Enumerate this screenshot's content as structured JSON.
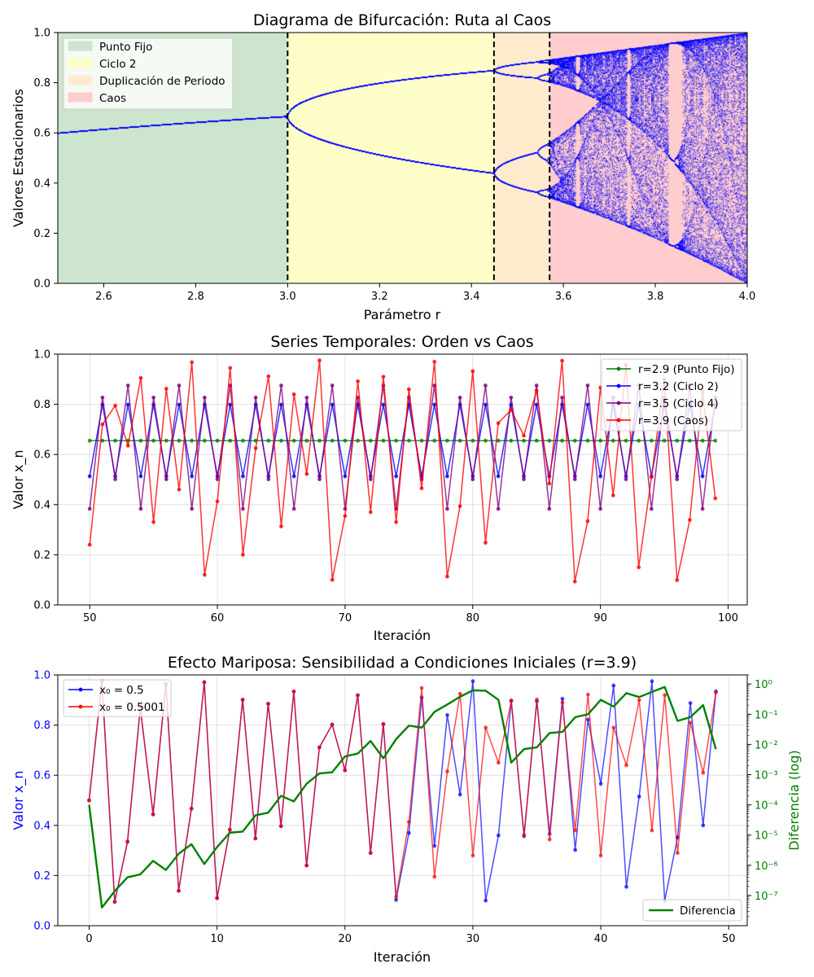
{
  "chart_data": [
    {
      "type": "scatter",
      "title": "Diagrama de Bifurcación: Ruta al Caos",
      "xlabel": "Parámetro r",
      "ylabel": "Valores Estacionarios",
      "xlim": [
        2.5,
        4.0
      ],
      "ylim": [
        0.0,
        1.0
      ],
      "xticks": [
        "2.6",
        "2.8",
        "3.0",
        "3.2",
        "3.4",
        "3.6",
        "3.8",
        "4.0"
      ],
      "yticks": [
        "0.0",
        "0.2",
        "0.4",
        "0.6",
        "0.8",
        "1.0"
      ],
      "grid": false,
      "point_color": "#0000ff",
      "regions": [
        {
          "name": "Punto Fijo",
          "r_start": 2.5,
          "r_end": 3.0,
          "color": "#cde5cd"
        },
        {
          "name": "Ciclo 2",
          "r_start": 3.0,
          "r_end": 3.449,
          "color": "#fefec8"
        },
        {
          "name": "Duplicación de Periodo",
          "r_start": 3.449,
          "r_end": 3.57,
          "color": "#feebcd"
        },
        {
          "name": "Caos",
          "r_start": 3.57,
          "r_end": 4.0,
          "color": "#ffcdcd"
        }
      ],
      "thresholds": [
        3.0,
        3.449,
        3.57
      ],
      "legend_position": "upper-left"
    },
    {
      "type": "line",
      "title": "Series Temporales: Orden vs Caos",
      "xlabel": "Iteración",
      "ylabel": "Valor x_n",
      "xlim": [
        47.5,
        101.5
      ],
      "ylim": [
        0.0,
        1.0
      ],
      "xticks": [
        "50",
        "60",
        "70",
        "80",
        "90",
        "100"
      ],
      "yticks": [
        "0.0",
        "0.2",
        "0.4",
        "0.6",
        "0.8",
        "1.0"
      ],
      "grid": true,
      "x_start": 50,
      "x_end": 99,
      "legend_position": "upper-right",
      "series": [
        {
          "name": "r=2.9 (Punto Fijo)",
          "r": 2.9,
          "color": "#008000",
          "values": [
            0.655,
            0.655,
            0.655,
            0.655,
            0.655,
            0.655,
            0.655,
            0.655,
            0.655,
            0.655,
            0.655,
            0.655,
            0.655,
            0.655,
            0.655,
            0.655,
            0.655,
            0.655,
            0.655,
            0.655,
            0.655,
            0.655,
            0.655,
            0.655,
            0.655,
            0.655,
            0.655,
            0.655,
            0.655,
            0.655,
            0.655,
            0.655,
            0.655,
            0.655,
            0.655,
            0.655,
            0.655,
            0.655,
            0.655,
            0.655,
            0.655,
            0.655,
            0.655,
            0.655,
            0.655,
            0.655,
            0.655,
            0.655,
            0.655,
            0.655
          ]
        },
        {
          "name": "r=3.2 (Ciclo 2)",
          "r": 3.2,
          "color": "#0000ff",
          "values": [
            0.513,
            0.799,
            0.513,
            0.799,
            0.513,
            0.799,
            0.513,
            0.799,
            0.513,
            0.799,
            0.513,
            0.799,
            0.513,
            0.799,
            0.513,
            0.799,
            0.513,
            0.799,
            0.513,
            0.799,
            0.513,
            0.799,
            0.513,
            0.799,
            0.513,
            0.799,
            0.513,
            0.799,
            0.513,
            0.799,
            0.513,
            0.799,
            0.513,
            0.799,
            0.513,
            0.799,
            0.513,
            0.799,
            0.513,
            0.799,
            0.513,
            0.799,
            0.513,
            0.799,
            0.513,
            0.799,
            0.513,
            0.799,
            0.513,
            0.799
          ]
        },
        {
          "name": "r=3.5 (Ciclo 4)",
          "r": 3.5,
          "color": "#800080",
          "values": [
            0.383,
            0.827,
            0.501,
            0.875,
            0.383,
            0.827,
            0.501,
            0.875,
            0.383,
            0.827,
            0.501,
            0.875,
            0.383,
            0.827,
            0.501,
            0.875,
            0.383,
            0.827,
            0.501,
            0.875,
            0.383,
            0.827,
            0.501,
            0.875,
            0.383,
            0.827,
            0.501,
            0.875,
            0.383,
            0.827,
            0.501,
            0.875,
            0.383,
            0.827,
            0.501,
            0.875,
            0.383,
            0.827,
            0.501,
            0.875,
            0.383,
            0.827,
            0.501,
            0.875,
            0.383,
            0.827,
            0.501,
            0.875,
            0.383,
            0.827
          ]
        },
        {
          "name": "r=3.9 (Caos)",
          "r": 3.9,
          "color": "#ff0000",
          "values": [
            0.24,
            0.72,
            0.795,
            0.635,
            0.905,
            0.33,
            0.862,
            0.46,
            0.968,
            0.12,
            0.413,
            0.945,
            0.2,
            0.625,
            0.912,
            0.313,
            0.84,
            0.522,
            0.975,
            0.1,
            0.355,
            0.892,
            0.37,
            0.91,
            0.33,
            0.86,
            0.465,
            0.97,
            0.113,
            0.394,
            0.932,
            0.248,
            0.725,
            0.778,
            0.675,
            0.855,
            0.484,
            0.974,
            0.093,
            0.334,
            0.867,
            0.437,
            0.958,
            0.15,
            0.51,
            0.9,
            0.099,
            0.339,
            0.85,
            0.425
          ]
        }
      ]
    },
    {
      "type": "line",
      "title": "Efecto Mariposa: Sensibilidad a Condiciones Iniciales (r=3.9)",
      "xlabel": "Iteración",
      "ylabel": "Valor x_n",
      "y2label": "Diferencia (log)",
      "xlim": [
        -2.45,
        51.45
      ],
      "ylim": [
        0.0,
        1.0
      ],
      "y2scale": "log",
      "y2lim": [
        1e-08,
        2
      ],
      "xticks": [
        "0",
        "10",
        "20",
        "30",
        "40",
        "50"
      ],
      "yticks": [
        "0.0",
        "0.2",
        "0.4",
        "0.6",
        "0.8",
        "1.0"
      ],
      "y2ticks": [
        "10⁻⁷",
        "10⁻⁶",
        "10⁻⁵",
        "10⁻⁴",
        "10⁻³",
        "10⁻²",
        "10⁻¹",
        "10⁰"
      ],
      "grid": true,
      "legend_position": "upper-left",
      "legend2_position": "lower-right",
      "series": [
        {
          "name": "x₀ = 0.5",
          "color": "#0000ff",
          "values": [
            0.5,
            0.975,
            0.095,
            0.335,
            0.869,
            0.444,
            0.963,
            0.139,
            0.467,
            0.971,
            0.11,
            0.383,
            0.901,
            0.348,
            0.885,
            0.397,
            0.934,
            0.24,
            0.711,
            0.802,
            0.62,
            0.919,
            0.29,
            0.804,
            0.103,
            0.37,
            0.91,
            0.318,
            0.84,
            0.523,
            0.975,
            0.1,
            0.36,
            0.898,
            0.357,
            0.895,
            0.366,
            0.905,
            0.302,
            0.822,
            0.566,
            0.958,
            0.155,
            0.515,
            0.975,
            0.1,
            0.352,
            0.888,
            0.4,
            0.935
          ]
        },
        {
          "name": "x₀ = 0.5001",
          "color": "#ff0000",
          "values": [
            0.5,
            0.975,
            0.095,
            0.335,
            0.869,
            0.444,
            0.963,
            0.139,
            0.467,
            0.971,
            0.11,
            0.383,
            0.901,
            0.348,
            0.885,
            0.397,
            0.934,
            0.24,
            0.711,
            0.802,
            0.62,
            0.919,
            0.29,
            0.804,
            0.116,
            0.414,
            0.948,
            0.195,
            0.615,
            0.925,
            0.28,
            0.79,
            0.65,
            0.896,
            0.362,
            0.902,
            0.344,
            0.89,
            0.38,
            0.922,
            0.28,
            0.79,
            0.64,
            0.9,
            0.38,
            0.92,
            0.29,
            0.81,
            0.61,
            0.93
          ]
        },
        {
          "name": "Diferencia",
          "color": "#008000",
          "axis": "right",
          "values": [
            0.0001,
            4e-08,
            1.4e-07,
            4e-07,
            5e-07,
            1.4e-06,
            7e-07,
            2.4e-06,
            5e-06,
            1.1e-06,
            4e-06,
            1.2e-05,
            1.3e-05,
            4.5e-05,
            5.5e-05,
            0.0002,
            0.00013,
            0.0005,
            0.0011,
            0.0012,
            0.004,
            0.005,
            0.013,
            0.0035,
            0.015,
            0.042,
            0.036,
            0.12,
            0.21,
            0.38,
            0.62,
            0.6,
            0.3,
            0.0025,
            0.007,
            0.008,
            0.024,
            0.026,
            0.08,
            0.1,
            0.3,
            0.18,
            0.5,
            0.37,
            0.55,
            0.8,
            0.06,
            0.08,
            0.2,
            0.007
          ]
        }
      ]
    }
  ]
}
